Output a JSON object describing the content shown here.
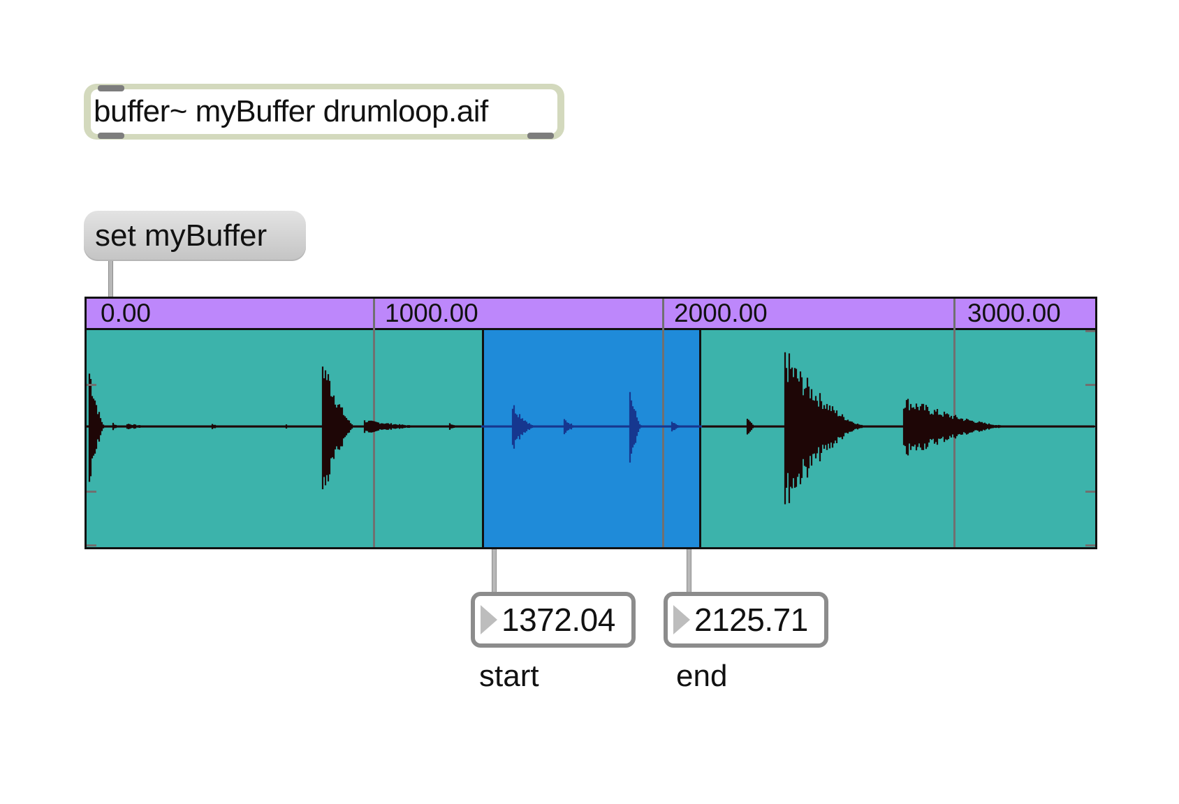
{
  "objects": {
    "buffer": {
      "text": "buffer~ myBuffer drumloop.aif"
    },
    "message": {
      "text": "set myBuffer"
    }
  },
  "waveform": {
    "ruler_labels": [
      "0.00",
      "1000.00",
      "2000.00",
      "3000.00"
    ],
    "ruler_values": [
      0,
      1000,
      2000,
      3000
    ],
    "selection": {
      "start": 1372.04,
      "end": 2125.71
    },
    "colors": {
      "ruler": "#bd87fb",
      "background": "#3cb3ab",
      "selection": "#1f8bd9",
      "waveform": "#1e0606",
      "waveform_selected": "#16378f"
    }
  },
  "number_boxes": {
    "start": {
      "value": "1372.04",
      "comment": "start"
    },
    "end": {
      "value": "2125.71",
      "comment": "end"
    }
  }
}
